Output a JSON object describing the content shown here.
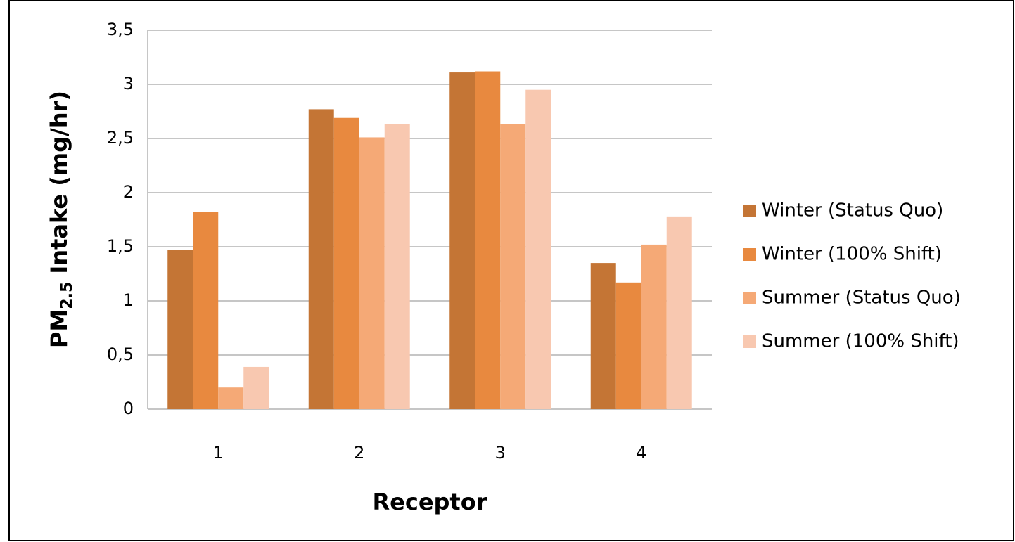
{
  "chart_data": {
    "type": "bar",
    "ylabel": [
      "PM",
      "2.5",
      " Intake (mg/hr)"
    ],
    "xlabel": "Receptor",
    "categories": [
      "1",
      "2",
      "3",
      "4"
    ],
    "series": [
      {
        "name": "Winter (Status Quo)",
        "color": "#c47535",
        "values": [
          1.47,
          2.77,
          3.11,
          1.35
        ]
      },
      {
        "name": "Winter (100% Shift)",
        "color": "#e8893f",
        "values": [
          1.82,
          2.69,
          3.12,
          1.17
        ]
      },
      {
        "name": "Summer (Status Quo)",
        "color": "#f5a976",
        "values": [
          0.2,
          2.51,
          2.63,
          1.52
        ]
      },
      {
        "name": "Summer (100% Shift)",
        "color": "#f8c8b0",
        "values": [
          0.39,
          2.63,
          2.95,
          1.78
        ]
      }
    ],
    "ylim": [
      0,
      3.5
    ],
    "yticks": [
      0,
      {
        "value": 0.5,
        "label": "0,5"
      },
      1,
      {
        "value": 1.5,
        "label": "1,5"
      },
      2,
      {
        "value": 2.5,
        "label": "2,5"
      },
      3,
      {
        "value": 3.5,
        "label": "3,5"
      }
    ],
    "grid": true,
    "legend": "right"
  }
}
